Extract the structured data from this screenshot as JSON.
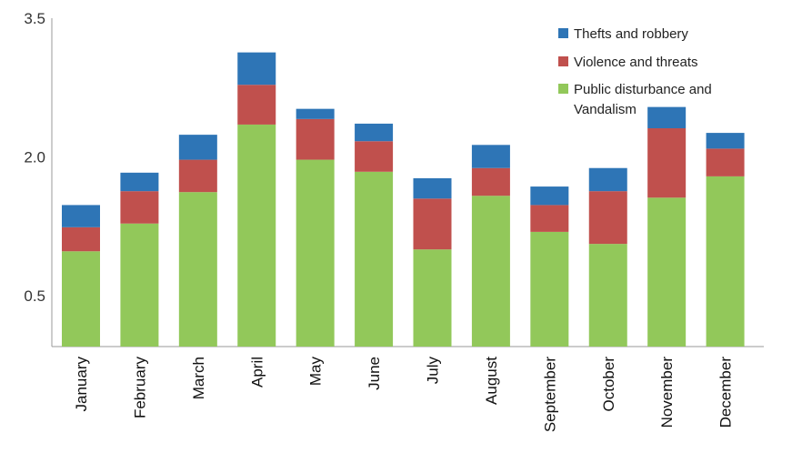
{
  "chart_data": {
    "type": "bar",
    "stacked": true,
    "categories": [
      "January",
      "February",
      "March",
      "April",
      "May",
      "June",
      "July",
      "August",
      "September",
      "October",
      "November",
      "December"
    ],
    "series": [
      {
        "name": "Public disturbance and Vandalism",
        "color": "#92c85a",
        "values": [
          0.98,
          1.28,
          1.62,
          2.35,
          1.97,
          1.84,
          1.0,
          1.58,
          1.19,
          1.06,
          1.56,
          1.79
        ]
      },
      {
        "name": "Violence and threats",
        "color": "#c0504d",
        "values": [
          0.26,
          0.35,
          0.35,
          0.43,
          0.44,
          0.33,
          0.55,
          0.3,
          0.29,
          0.57,
          0.75,
          0.3
        ]
      },
      {
        "name": "Thefts and robbery",
        "color": "#2e75b6",
        "values": [
          0.24,
          0.2,
          0.27,
          0.35,
          0.11,
          0.19,
          0.22,
          0.25,
          0.2,
          0.25,
          0.23,
          0.17
        ]
      }
    ],
    "yticks": [
      "0.5",
      "2.0",
      "3.5"
    ],
    "yticks_values": [
      0.5,
      2.0,
      3.5
    ],
    "ylim": [
      -0.05,
      3.5
    ],
    "grid": false,
    "legend_position": "top-right",
    "legend_order": [
      2,
      1,
      0
    ]
  }
}
